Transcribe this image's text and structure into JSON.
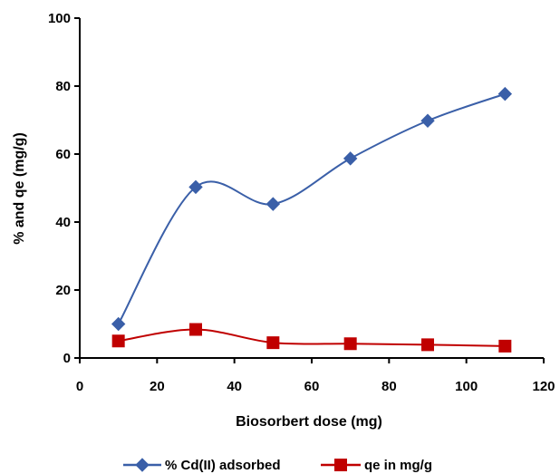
{
  "chart_data": {
    "type": "line",
    "title": "",
    "xlabel": "Biosorbert dose (mg)",
    "ylabel": "% and qe (mg/g)",
    "xlim": [
      0,
      120
    ],
    "ylim": [
      0,
      100
    ],
    "xticks": [
      0,
      20,
      40,
      60,
      80,
      100,
      120
    ],
    "yticks": [
      0,
      20,
      40,
      60,
      80,
      100
    ],
    "xtick_labels": [
      "0",
      "20",
      "40",
      "60",
      "80",
      "100",
      "120"
    ],
    "ytick_labels": [
      "0",
      "20",
      "40",
      "60",
      "80",
      "100"
    ],
    "grid": false,
    "legend_position": "bottom",
    "x": [
      10,
      30,
      50,
      70,
      90,
      110
    ],
    "series": [
      {
        "name": "% Cd(II) adsorbed",
        "values": [
          10,
          50.3,
          45.3,
          58.7,
          69.8,
          77.7
        ],
        "color": "#3a5fa8",
        "marker": "diamond",
        "smooth": true
      },
      {
        "name": "qe in mg/g",
        "values": [
          5,
          8.4,
          4.5,
          4.2,
          3.9,
          3.5
        ],
        "color": "#c00000",
        "marker": "square",
        "smooth": true
      }
    ]
  }
}
